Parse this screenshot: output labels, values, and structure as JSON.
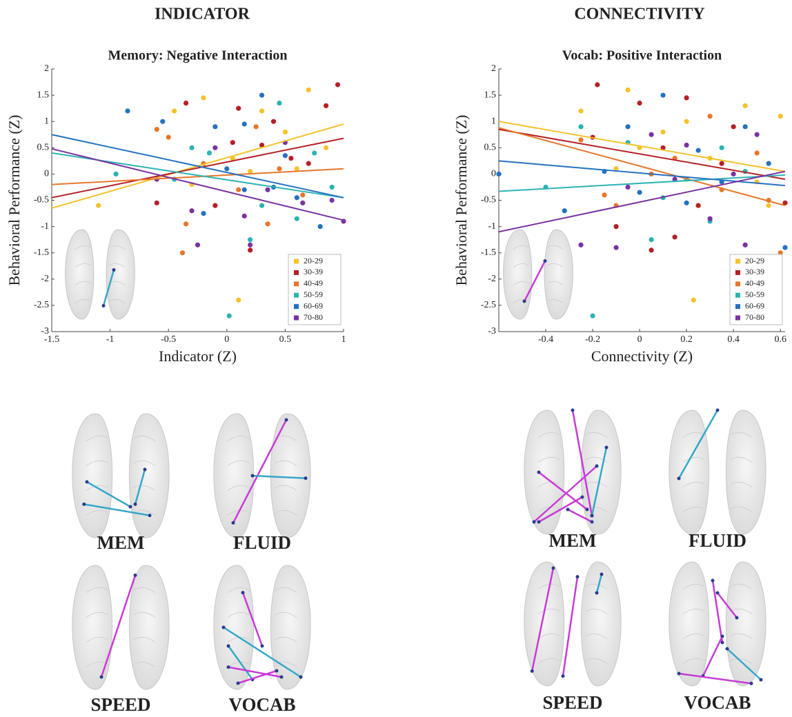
{
  "headers": [
    "INDICATOR",
    "CONNECTIVITY"
  ],
  "chart_data": [
    {
      "type": "scatter",
      "title": "Memory: Negative Interaction",
      "xlabel": "Indicator (Z)",
      "ylabel": "Behavioral Performance (Z)",
      "xlim": [
        -1.5,
        1
      ],
      "xticks": [
        -1.5,
        -1,
        -0.5,
        0,
        0.5,
        1
      ],
      "ylim": [
        -3,
        2
      ],
      "yticks": [
        -3,
        -2.5,
        -2,
        -1.5,
        -1,
        -0.5,
        0,
        0.5,
        1,
        1.5,
        2
      ],
      "legend": "lower right",
      "series": [
        {
          "name": "20-29",
          "color": "#f5c22b",
          "x": [
            -1.1,
            0.1,
            -0.2,
            0.3,
            0.5,
            0.7,
            -0.45,
            0.05,
            0.6,
            0.85,
            -0.3,
            0.2
          ],
          "values": [
            -0.6,
            -2.4,
            1.45,
            1.2,
            0.8,
            1.6,
            1.2,
            0.3,
            0.1,
            0.5,
            -0.2,
            0.05
          ],
          "line": {
            "x": [
              -1.5,
              1
            ],
            "y": [
              -0.65,
              0.95
            ]
          }
        },
        {
          "name": "30-39",
          "color": "#b52025",
          "x": [
            0.95,
            -0.35,
            0.3,
            0.1,
            -0.1,
            0.55,
            0.85,
            0.2,
            -0.6,
            0.4,
            0.05,
            0.7
          ],
          "values": [
            1.7,
            1.35,
            0.55,
            1.25,
            -0.6,
            0.3,
            1.3,
            -1.45,
            -0.55,
            1.0,
            0.6,
            0.2
          ],
          "line": {
            "x": [
              -1.5,
              1
            ],
            "y": [
              -0.45,
              0.68
            ]
          }
        },
        {
          "name": "40-49",
          "color": "#e6772a",
          "x": [
            -0.38,
            -0.5,
            0.45,
            0.1,
            -0.2,
            0.65,
            0.25,
            -0.6,
            0.35,
            -0.35
          ],
          "values": [
            -1.5,
            0.7,
            0.1,
            -0.3,
            0.2,
            -0.4,
            0.9,
            0.85,
            -0.95,
            -0.95
          ],
          "line": {
            "x": [
              -1.5,
              1
            ],
            "y": [
              -0.2,
              0.1
            ]
          }
        },
        {
          "name": "50-59",
          "color": "#2bb3b3",
          "x": [
            0.02,
            -0.95,
            0.45,
            -0.3,
            0.2,
            0.6,
            -0.15,
            0.9,
            0.3,
            -0.45,
            0.75
          ],
          "values": [
            -2.7,
            0,
            1.35,
            0.5,
            -1.25,
            -0.85,
            0.4,
            -0.25,
            -0.6,
            -0.1,
            0.4
          ],
          "line": {
            "x": [
              -1.5,
              1
            ],
            "y": [
              0.4,
              -0.45
            ]
          }
        },
        {
          "name": "60-69",
          "color": "#2372c0",
          "x": [
            -0.85,
            0.3,
            0.15,
            -0.55,
            0.6,
            0,
            -0.2,
            0.4,
            0.8,
            0.15,
            -0.1,
            0.5
          ],
          "values": [
            1.2,
            1.5,
            0.95,
            1.0,
            -0.45,
            0.1,
            -0.75,
            -0.25,
            -1.0,
            -0.3,
            0.9,
            0.35
          ],
          "line": {
            "x": [
              -1.5,
              1
            ],
            "y": [
              0.75,
              -0.45
            ]
          }
        },
        {
          "name": "70-80",
          "color": "#7b32a0",
          "x": [
            0.2,
            -0.25,
            1,
            0.35,
            0.65,
            -0.1,
            0.5,
            -0.6,
            0.15,
            0.9,
            -0.3
          ],
          "values": [
            -1.35,
            -1.35,
            -0.9,
            -0.3,
            -0.55,
            0.5,
            0.6,
            -0.1,
            -0.8,
            -0.5,
            -0.7
          ],
          "line": {
            "x": [
              -1.5,
              1
            ],
            "y": [
              0.48,
              -0.88
            ]
          }
        }
      ]
    },
    {
      "type": "scatter",
      "title": "Vocab: Positive Interaction",
      "xlabel": "Connectivity (Z)",
      "ylabel": "Behavioral Performance (Z)",
      "xlim": [
        -0.6,
        0.62
      ],
      "xticks": [
        -0.4,
        -0.2,
        0,
        0.2,
        0.4,
        0.6
      ],
      "ylim": [
        -3,
        2
      ],
      "yticks": [
        -3,
        -2.5,
        -2,
        -1.5,
        -1,
        -0.5,
        0,
        0.5,
        1,
        1.5,
        2
      ],
      "legend": "lower right",
      "series": [
        {
          "name": "20-29",
          "color": "#f5c22b",
          "x": [
            0.23,
            -0.05,
            0.6,
            0.45,
            0.1,
            -0.25,
            0.3,
            0.5,
            0,
            0.2,
            -0.1,
            0.55
          ],
          "values": [
            -2.4,
            1.6,
            1.1,
            1.3,
            0.8,
            1.2,
            0.3,
            -0.15,
            0.5,
            1.0,
            0.1,
            -0.6
          ],
          "line": {
            "x": [
              -0.6,
              0.62
            ],
            "y": [
              1.0,
              0.05
            ]
          }
        },
        {
          "name": "30-39",
          "color": "#b52025",
          "x": [
            -0.18,
            0.2,
            0,
            -0.1,
            0.35,
            0.15,
            0.05,
            0.62,
            -0.2,
            0.4,
            0.1,
            0.25
          ],
          "values": [
            1.7,
            1.45,
            1.35,
            -1.0,
            0.2,
            -1.2,
            -1.45,
            -0.55,
            0.7,
            0.9,
            0.5,
            -0.6
          ],
          "line": {
            "x": [
              -0.6,
              0.62
            ],
            "y": [
              0.85,
              -0.1
            ]
          }
        },
        {
          "name": "40-49",
          "color": "#e6772a",
          "x": [
            0.55,
            0.6,
            -0.1,
            0.15,
            -0.25,
            0.35,
            0.3,
            0.05,
            -0.15,
            0.5
          ],
          "values": [
            -0.5,
            -1.5,
            -0.6,
            0.3,
            0.65,
            -0.3,
            1.1,
            0,
            -0.4,
            0.4
          ],
          "line": {
            "x": [
              -0.6,
              0.62
            ],
            "y": [
              0.88,
              -0.6
            ]
          }
        },
        {
          "name": "50-59",
          "color": "#2bb3b3",
          "x": [
            -0.2,
            -0.25,
            0.05,
            0.35,
            -0.4,
            0.2,
            0.45,
            -0.05,
            0.1,
            0.3
          ],
          "values": [
            -2.7,
            0.9,
            -1.25,
            0.5,
            -0.25,
            -0.1,
            0.05,
            0.6,
            -0.45,
            -0.9
          ],
          "line": {
            "x": [
              -0.6,
              0.62
            ],
            "y": [
              -0.33,
              -0.02
            ]
          }
        },
        {
          "name": "60-69",
          "color": "#2372c0",
          "x": [
            -0.6,
            0.62,
            0.1,
            0.45,
            0.25,
            -0.32,
            0,
            -0.15,
            0.35,
            0.2,
            -0.05,
            0.55
          ],
          "values": [
            0,
            -1.4,
            1.5,
            0.9,
            0.45,
            -0.7,
            -0.35,
            0.05,
            -0.15,
            -0.55,
            0.9,
            0.2
          ],
          "line": {
            "x": [
              -0.6,
              0.62
            ],
            "y": [
              0.25,
              -0.22
            ]
          }
        },
        {
          "name": "70-80",
          "color": "#7b32a0",
          "x": [
            -0.1,
            0.45,
            0.5,
            -0.25,
            0.05,
            0.15,
            0.3,
            0.2,
            -0.05,
            0.4
          ],
          "values": [
            -1.4,
            -1.35,
            0.75,
            -1.35,
            0.75,
            -0.1,
            -0.85,
            0.55,
            -0.25,
            0
          ],
          "line": {
            "x": [
              -0.6,
              0.62
            ],
            "y": [
              -1.1,
              0.05
            ]
          }
        }
      ]
    }
  ],
  "brain_labels": [
    [
      "MEM",
      "FLUID",
      "SPEED",
      "VOCAB"
    ],
    [
      "MEM",
      "FLUID",
      "SPEED",
      "VOCAB"
    ]
  ]
}
